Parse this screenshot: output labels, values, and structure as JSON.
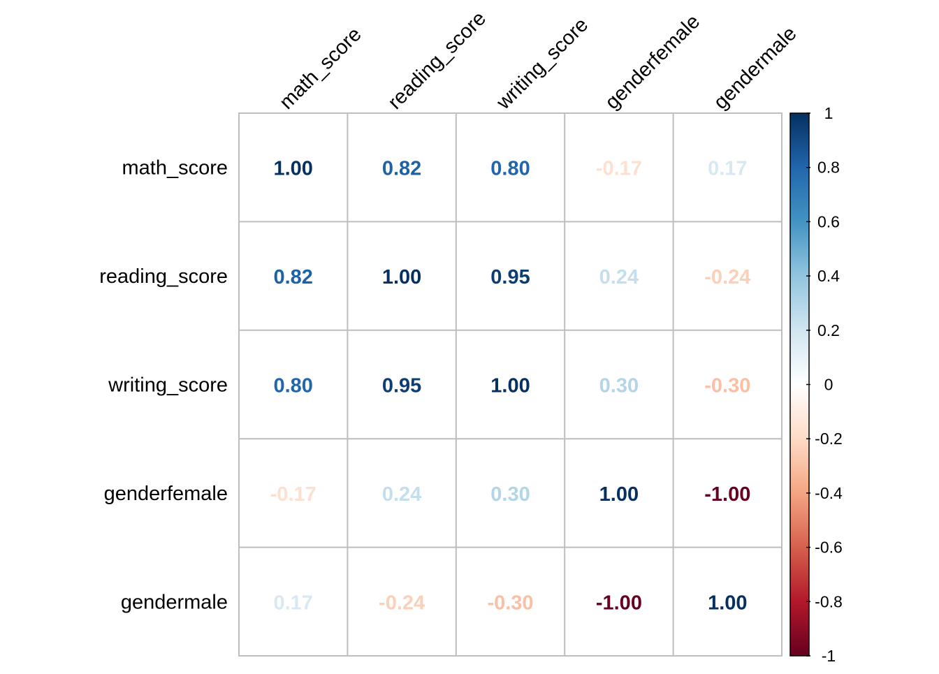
{
  "chart_data": {
    "type": "heatmap",
    "title": "",
    "variables": [
      "math_score",
      "reading_score",
      "writing_score",
      "genderfemale",
      "gendermale"
    ],
    "row_labels": [
      "math_score",
      "reading_score",
      "writing_score",
      "genderfemale",
      "gendermale"
    ],
    "col_labels": [
      "math_score",
      "reading_score",
      "writing_score",
      "genderfemale",
      "gendermale"
    ],
    "values": [
      [
        1.0,
        0.82,
        0.8,
        -0.17,
        0.17
      ],
      [
        0.82,
        1.0,
        0.95,
        0.24,
        -0.24
      ],
      [
        0.8,
        0.95,
        1.0,
        0.3,
        -0.3
      ],
      [
        -0.17,
        0.24,
        0.3,
        1.0,
        -1.0
      ],
      [
        0.17,
        -0.24,
        -0.3,
        -1.0,
        1.0
      ]
    ],
    "value_labels": [
      [
        "1.00",
        "0.82",
        "0.80",
        "-0.17",
        "0.17"
      ],
      [
        "0.82",
        "1.00",
        "0.95",
        "0.24",
        "-0.24"
      ],
      [
        "0.80",
        "0.95",
        "1.00",
        "0.30",
        "-0.30"
      ],
      [
        "-0.17",
        "0.24",
        "0.30",
        "1.00",
        "-1.00"
      ],
      [
        "0.17",
        "-0.24",
        "-0.30",
        "-1.00",
        "1.00"
      ]
    ],
    "color_scale": {
      "range": [
        -1,
        1
      ],
      "ticks": [
        1,
        0.8,
        0.6,
        0.4,
        0.2,
        0,
        -0.2,
        -0.4,
        -0.6,
        -0.8,
        -1
      ],
      "tick_labels": [
        "1",
        "0.8",
        "0.6",
        "0.4",
        "0.2",
        "0",
        "-0.2",
        "-0.4",
        "-0.6",
        "-0.8",
        "-1"
      ],
      "palette": [
        "#67001F",
        "#B2182B",
        "#D6604D",
        "#F4A582",
        "#FDDBC7",
        "#FFFFFF",
        "#D1E5F0",
        "#92C5DE",
        "#4393C3",
        "#2166AC",
        "#053061"
      ]
    },
    "grid": true,
    "grid_color": "#bebebe",
    "legend_placement": "right"
  }
}
